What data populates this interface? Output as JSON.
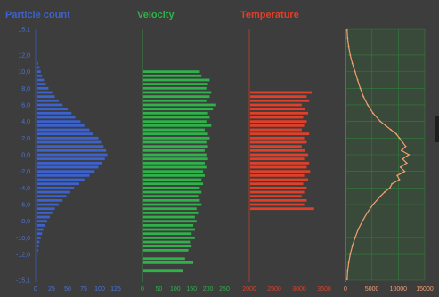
{
  "chart_data": {
    "type": "bar",
    "orientation": "horizontal",
    "colors": {
      "background": "#3d3d3d",
      "axis_text_blue": "#4f74d6",
      "particle_count": "#3d62cc",
      "velocity": "#2fb24a",
      "temperature": "#e0402a",
      "profile_line": "#f0a070",
      "profile_grid": "#2f7d3a",
      "profile_bg": "#3a4a3a"
    },
    "y_ticks": [
      "15,1",
      "12,0",
      "10,0",
      "8,0",
      "6,0",
      "4,0",
      "2,0",
      "0,0",
      "-2,0",
      "-4,0",
      "-6,0",
      "-8,0",
      "-10,0",
      "-12,0",
      "-15,1"
    ],
    "y_tick_values": [
      15.1,
      12,
      10,
      8,
      6,
      4,
      2,
      0,
      -2,
      -4,
      -6,
      -8,
      -10,
      -12,
      -15.1
    ],
    "ylim": [
      -15.1,
      15.1
    ],
    "panels": [
      {
        "title": "Particle count",
        "xlim": [
          0,
          125
        ],
        "x_ticks": [
          "0",
          "25",
          "50",
          "75",
          "100",
          "125"
        ],
        "x_tick_values": [
          0,
          25,
          50,
          75,
          100,
          125
        ],
        "series": {
          "y": [
            11.0,
            10.5,
            10.0,
            9.5,
            9.0,
            8.5,
            8.0,
            7.5,
            7.0,
            6.5,
            6.0,
            5.5,
            5.0,
            4.5,
            4.0,
            3.5,
            3.0,
            2.5,
            2.0,
            1.5,
            1.0,
            0.5,
            0.0,
            -0.5,
            -1.0,
            -1.5,
            -2.0,
            -2.5,
            -3.0,
            -3.5,
            -4.0,
            -4.5,
            -5.0,
            -5.5,
            -6.0,
            -6.5,
            -7.0,
            -7.5,
            -8.0,
            -8.5,
            -9.0,
            -9.5,
            -10.0,
            -10.5,
            -11.0,
            -11.5,
            -12.0,
            -12.5
          ],
          "values": [
            4,
            6,
            8,
            10,
            13,
            16,
            20,
            26,
            30,
            36,
            42,
            50,
            56,
            62,
            70,
            76,
            84,
            90,
            98,
            102,
            106,
            110,
            112,
            108,
            104,
            98,
            92,
            84,
            76,
            68,
            60,
            54,
            48,
            42,
            36,
            30,
            26,
            22,
            18,
            15,
            12,
            10,
            8,
            6,
            5,
            4,
            3,
            2
          ]
        }
      },
      {
        "title": "Velocity",
        "xlim": [
          0,
          250
        ],
        "x_ticks": [
          "0",
          "50",
          "100",
          "150",
          "200",
          "250"
        ],
        "x_tick_values": [
          0,
          50,
          100,
          150,
          200,
          250
        ],
        "series": {
          "y": [
            10.0,
            9.5,
            9.0,
            8.5,
            8.0,
            7.5,
            7.0,
            6.5,
            6.0,
            5.5,
            5.0,
            4.5,
            4.0,
            3.5,
            3.0,
            2.5,
            2.0,
            1.5,
            1.0,
            0.5,
            0.0,
            -0.5,
            -1.0,
            -1.5,
            -2.0,
            -2.5,
            -3.0,
            -3.5,
            -4.0,
            -4.5,
            -5.0,
            -5.5,
            -6.0,
            -6.5,
            -7.0,
            -7.5,
            -8.0,
            -8.5,
            -9.0,
            -9.5,
            -10.0,
            -10.5,
            -11.0,
            -11.5,
            -12.5,
            -13.0,
            -14.0
          ],
          "values": [
            175,
            180,
            205,
            200,
            195,
            210,
            205,
            195,
            225,
            215,
            200,
            205,
            195,
            210,
            190,
            200,
            205,
            195,
            200,
            190,
            195,
            200,
            190,
            195,
            185,
            190,
            180,
            185,
            175,
            180,
            170,
            175,
            180,
            165,
            170,
            160,
            165,
            155,
            160,
            150,
            160,
            145,
            150,
            140,
            130,
            155,
            125
          ]
        }
      },
      {
        "title": "Temperature",
        "xlim": [
          2000,
          3500
        ],
        "x_ticks": [
          "2000",
          "2500",
          "3000",
          "3500"
        ],
        "x_tick_values": [
          2000,
          2500,
          3000,
          3500
        ],
        "series": {
          "y": [
            7.5,
            7.0,
            6.5,
            6.0,
            5.5,
            5.0,
            4.5,
            4.0,
            3.5,
            3.0,
            2.5,
            2.0,
            1.5,
            1.0,
            0.5,
            0.0,
            -0.5,
            -1.0,
            -1.5,
            -2.0,
            -2.5,
            -3.0,
            -3.5,
            -4.0,
            -4.5,
            -5.0,
            -5.5,
            -6.0,
            -6.5
          ],
          "values": [
            3250,
            3150,
            3200,
            3050,
            3120,
            3180,
            3080,
            3150,
            3100,
            3050,
            3200,
            3100,
            3150,
            3050,
            3120,
            3180,
            3100,
            3200,
            3150,
            3220,
            3100,
            3180,
            3080,
            3150,
            3100,
            3050,
            3150,
            3100,
            3300
          ]
        }
      },
      {
        "title": "",
        "type": "line",
        "grid": true,
        "xlim": [
          0,
          15000
        ],
        "x_ticks": [
          "0",
          "5000",
          "10000",
          "15000"
        ],
        "x_tick_values": [
          0,
          5000,
          10000,
          15000
        ],
        "series": {
          "y": [
            15.0,
            14.0,
            13.0,
            12.0,
            11.0,
            10.0,
            9.0,
            8.0,
            7.0,
            6.0,
            5.0,
            4.0,
            3.5,
            3.0,
            2.5,
            2.0,
            1.5,
            1.0,
            0.5,
            0.0,
            -0.5,
            -1.0,
            -1.5,
            -2.0,
            -2.5,
            -3.0,
            -3.5,
            -4.0,
            -4.5,
            -5.0,
            -6.0,
            -7.0,
            -8.0,
            -9.0,
            -10.0,
            -11.0,
            -12.0,
            -13.0,
            -14.0,
            -15.0
          ],
          "values": [
            300,
            400,
            600,
            900,
            1300,
            1800,
            2300,
            2800,
            3400,
            4200,
            5200,
            6600,
            7600,
            8600,
            9600,
            10200,
            10800,
            11400,
            10600,
            12000,
            10800,
            11600,
            10400,
            11200,
            9800,
            10200,
            8800,
            8400,
            7400,
            6600,
            5200,
            4100,
            3200,
            2400,
            1800,
            1300,
            900,
            600,
            400,
            300
          ]
        }
      }
    ]
  }
}
